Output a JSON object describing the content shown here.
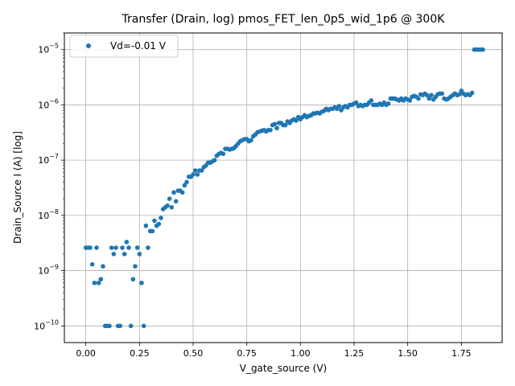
{
  "chart_data": {
    "type": "scatter",
    "title": "Transfer (Drain, log) pmos_FET_len_0p5_wid_1p6 @ 300K",
    "xlabel": "V_gate_source (V)",
    "ylabel": "Drain_Source I (A) [log]",
    "xlim": [
      -0.1,
      1.94
    ],
    "ylim": [
      5e-11,
      2e-05
    ],
    "yscale": "log",
    "grid": true,
    "legend_position": "top-left",
    "x_ticks": [
      {
        "value": 0.0,
        "label": "0.00"
      },
      {
        "value": 0.25,
        "label": "0.25"
      },
      {
        "value": 0.5,
        "label": "0.50"
      },
      {
        "value": 0.75,
        "label": "0.75"
      },
      {
        "value": 1.0,
        "label": "1.00"
      },
      {
        "value": 1.25,
        "label": "1.25"
      },
      {
        "value": 1.5,
        "label": "1.50"
      },
      {
        "value": 1.75,
        "label": "1.75"
      }
    ],
    "y_ticks": [
      {
        "value": 1e-10,
        "base": "10",
        "exp": "−10"
      },
      {
        "value": 1e-09,
        "base": "10",
        "exp": "−9"
      },
      {
        "value": 1e-08,
        "base": "10",
        "exp": "−8"
      },
      {
        "value": 1e-07,
        "base": "10",
        "exp": "−7"
      },
      {
        "value": 1e-06,
        "base": "10",
        "exp": "−6"
      },
      {
        "value": 1e-05,
        "base": "10",
        "exp": "−5"
      }
    ],
    "series": [
      {
        "name": "Vd=-0.01 V",
        "color": "#1f77b4",
        "points": [
          [
            0.0,
            2.6e-09
          ],
          [
            0.01,
            2.6e-09
          ],
          [
            0.02,
            2.6e-09
          ],
          [
            0.03,
            1.3e-09
          ],
          [
            0.04,
            6e-10
          ],
          [
            0.05,
            2.6e-09
          ],
          [
            0.06,
            6e-10
          ],
          [
            0.07,
            7e-10
          ],
          [
            0.08,
            1.2e-09
          ],
          [
            0.09,
            1e-10
          ],
          [
            0.1,
            1e-10
          ],
          [
            0.11,
            1e-10
          ],
          [
            0.12,
            2.6e-09
          ],
          [
            0.13,
            2e-09
          ],
          [
            0.14,
            2.6e-09
          ],
          [
            0.15,
            1e-10
          ],
          [
            0.16,
            1e-10
          ],
          [
            0.17,
            2.6e-09
          ],
          [
            0.18,
            2e-09
          ],
          [
            0.19,
            3.3e-09
          ],
          [
            0.2,
            2.6e-09
          ],
          [
            0.21,
            1e-10
          ],
          [
            0.22,
            7e-10
          ],
          [
            0.23,
            1.2e-09
          ],
          [
            0.24,
            2.6e-09
          ],
          [
            0.25,
            2e-09
          ],
          [
            0.26,
            6e-10
          ],
          [
            0.27,
            1e-10
          ],
          [
            0.28,
            6.5e-09
          ],
          [
            0.29,
            2.6e-09
          ],
          [
            0.3,
            5.2e-09
          ],
          [
            0.31,
            5.2e-09
          ],
          [
            0.32,
            8e-09
          ],
          [
            0.33,
            6.5e-09
          ],
          [
            0.34,
            7e-09
          ],
          [
            0.35,
            9e-09
          ],
          [
            0.36,
            1.3e-08
          ],
          [
            0.37,
            1.4e-08
          ],
          [
            0.38,
            1.5e-08
          ],
          [
            0.39,
            2e-08
          ],
          [
            0.4,
            1.4e-08
          ],
          [
            0.41,
            2.6e-08
          ],
          [
            0.42,
            1.8e-08
          ],
          [
            0.43,
            2.8e-08
          ],
          [
            0.44,
            2.8e-08
          ],
          [
            0.45,
            2.6e-08
          ],
          [
            0.46,
            3.5e-08
          ],
          [
            0.47,
            4e-08
          ],
          [
            0.48,
            5e-08
          ],
          [
            0.49,
            5e-08
          ],
          [
            0.5,
            5.5e-08
          ],
          [
            0.51,
            6.5e-08
          ],
          [
            0.52,
            5.5e-08
          ],
          [
            0.53,
            6.5e-08
          ],
          [
            0.54,
            6.5e-08
          ],
          [
            0.55,
            7.5e-08
          ],
          [
            0.56,
            8e-08
          ],
          [
            0.57,
            9e-08
          ],
          [
            0.58,
            9e-08
          ],
          [
            0.59,
            9.5e-08
          ],
          [
            0.6,
            1e-07
          ],
          [
            0.61,
            1.2e-07
          ],
          [
            0.62,
            1.3e-07
          ],
          [
            0.63,
            1.35e-07
          ],
          [
            0.64,
            1.3e-07
          ],
          [
            0.65,
            1.6e-07
          ],
          [
            0.66,
            1.6e-07
          ],
          [
            0.67,
            1.55e-07
          ],
          [
            0.68,
            1.6e-07
          ],
          [
            0.69,
            1.65e-07
          ],
          [
            0.7,
            1.8e-07
          ],
          [
            0.71,
            2e-07
          ],
          [
            0.72,
            2.2e-07
          ],
          [
            0.73,
            2.3e-07
          ],
          [
            0.74,
            2.4e-07
          ],
          [
            0.75,
            2.4e-07
          ],
          [
            0.76,
            2.2e-07
          ],
          [
            0.77,
            2.3e-07
          ],
          [
            0.78,
            2.7e-07
          ],
          [
            0.79,
            2.9e-07
          ],
          [
            0.8,
            3.2e-07
          ],
          [
            0.81,
            3.3e-07
          ],
          [
            0.82,
            3.4e-07
          ],
          [
            0.83,
            3.5e-07
          ],
          [
            0.84,
            3.3e-07
          ],
          [
            0.85,
            3.5e-07
          ],
          [
            0.86,
            3.5e-07
          ],
          [
            0.87,
            4.3e-07
          ],
          [
            0.88,
            4.5e-07
          ],
          [
            0.89,
            3.8e-07
          ],
          [
            0.9,
            4.7e-07
          ],
          [
            0.91,
            4.7e-07
          ],
          [
            0.92,
            4.3e-07
          ],
          [
            0.93,
            4.3e-07
          ],
          [
            0.94,
            5e-07
          ],
          [
            0.95,
            4.7e-07
          ],
          [
            0.96,
            5.2e-07
          ],
          [
            0.97,
            5.5e-07
          ],
          [
            0.98,
            5.2e-07
          ],
          [
            0.99,
            6e-07
          ],
          [
            1.0,
            5.5e-07
          ],
          [
            1.01,
            6e-07
          ],
          [
            1.02,
            6.5e-07
          ],
          [
            1.03,
            6e-07
          ],
          [
            1.04,
            6.3e-07
          ],
          [
            1.05,
            6.5e-07
          ],
          [
            1.06,
            7e-07
          ],
          [
            1.07,
            7e-07
          ],
          [
            1.08,
            7.2e-07
          ],
          [
            1.09,
            7e-07
          ],
          [
            1.1,
            7.5e-07
          ],
          [
            1.11,
            7.8e-07
          ],
          [
            1.12,
            8.5e-07
          ],
          [
            1.13,
            8e-07
          ],
          [
            1.14,
            8.5e-07
          ],
          [
            1.15,
            8.5e-07
          ],
          [
            1.16,
            9e-07
          ],
          [
            1.17,
            8.5e-07
          ],
          [
            1.18,
            9.5e-07
          ],
          [
            1.19,
            8e-07
          ],
          [
            1.2,
            9e-07
          ],
          [
            1.21,
            9.5e-07
          ],
          [
            1.22,
            9e-07
          ],
          [
            1.23,
            1e-06
          ],
          [
            1.24,
            1e-06
          ],
          [
            1.25,
            1.05e-06
          ],
          [
            1.26,
            1.1e-06
          ],
          [
            1.27,
            9.5e-07
          ],
          [
            1.28,
            1e-06
          ],
          [
            1.29,
            9.5e-07
          ],
          [
            1.3,
            1e-06
          ],
          [
            1.31,
            1e-06
          ],
          [
            1.32,
            1.1e-06
          ],
          [
            1.33,
            1.2e-06
          ],
          [
            1.34,
            1e-06
          ],
          [
            1.35,
            1e-06
          ],
          [
            1.36,
            1e-06
          ],
          [
            1.37,
            1.05e-06
          ],
          [
            1.38,
            1e-06
          ],
          [
            1.39,
            1.1e-06
          ],
          [
            1.4,
            1e-06
          ],
          [
            1.41,
            1.05e-06
          ],
          [
            1.42,
            1.3e-06
          ],
          [
            1.43,
            1.3e-06
          ],
          [
            1.44,
            1.3e-06
          ],
          [
            1.45,
            1.25e-06
          ],
          [
            1.46,
            1.2e-06
          ],
          [
            1.47,
            1.3e-06
          ],
          [
            1.48,
            1.2e-06
          ],
          [
            1.49,
            1.3e-06
          ],
          [
            1.5,
            1.25e-06
          ],
          [
            1.51,
            1.2e-06
          ],
          [
            1.52,
            1.4e-06
          ],
          [
            1.53,
            1.45e-06
          ],
          [
            1.54,
            1.4e-06
          ],
          [
            1.55,
            1.3e-06
          ],
          [
            1.56,
            1.55e-06
          ],
          [
            1.57,
            1.5e-06
          ],
          [
            1.58,
            1.6e-06
          ],
          [
            1.59,
            1.5e-06
          ],
          [
            1.6,
            1.3e-06
          ],
          [
            1.61,
            1.5e-06
          ],
          [
            1.62,
            1.25e-06
          ],
          [
            1.63,
            1.4e-06
          ],
          [
            1.64,
            1.55e-06
          ],
          [
            1.65,
            1.6e-06
          ],
          [
            1.66,
            1.6e-06
          ],
          [
            1.67,
            1.3e-06
          ],
          [
            1.68,
            1.25e-06
          ],
          [
            1.69,
            1.3e-06
          ],
          [
            1.7,
            1.4e-06
          ],
          [
            1.71,
            1.5e-06
          ],
          [
            1.72,
            1.6e-06
          ],
          [
            1.73,
            1.5e-06
          ],
          [
            1.74,
            1.55e-06
          ],
          [
            1.75,
            1.8e-06
          ],
          [
            1.76,
            1.6e-06
          ],
          [
            1.77,
            1.5e-06
          ],
          [
            1.78,
            1.55e-06
          ],
          [
            1.79,
            1.5e-06
          ],
          [
            1.8,
            1.65e-06
          ],
          [
            1.81,
            1e-05
          ],
          [
            1.82,
            1e-05
          ],
          [
            1.83,
            1e-05
          ],
          [
            1.84,
            1e-05
          ],
          [
            1.85,
            1e-05
          ]
        ]
      }
    ]
  }
}
